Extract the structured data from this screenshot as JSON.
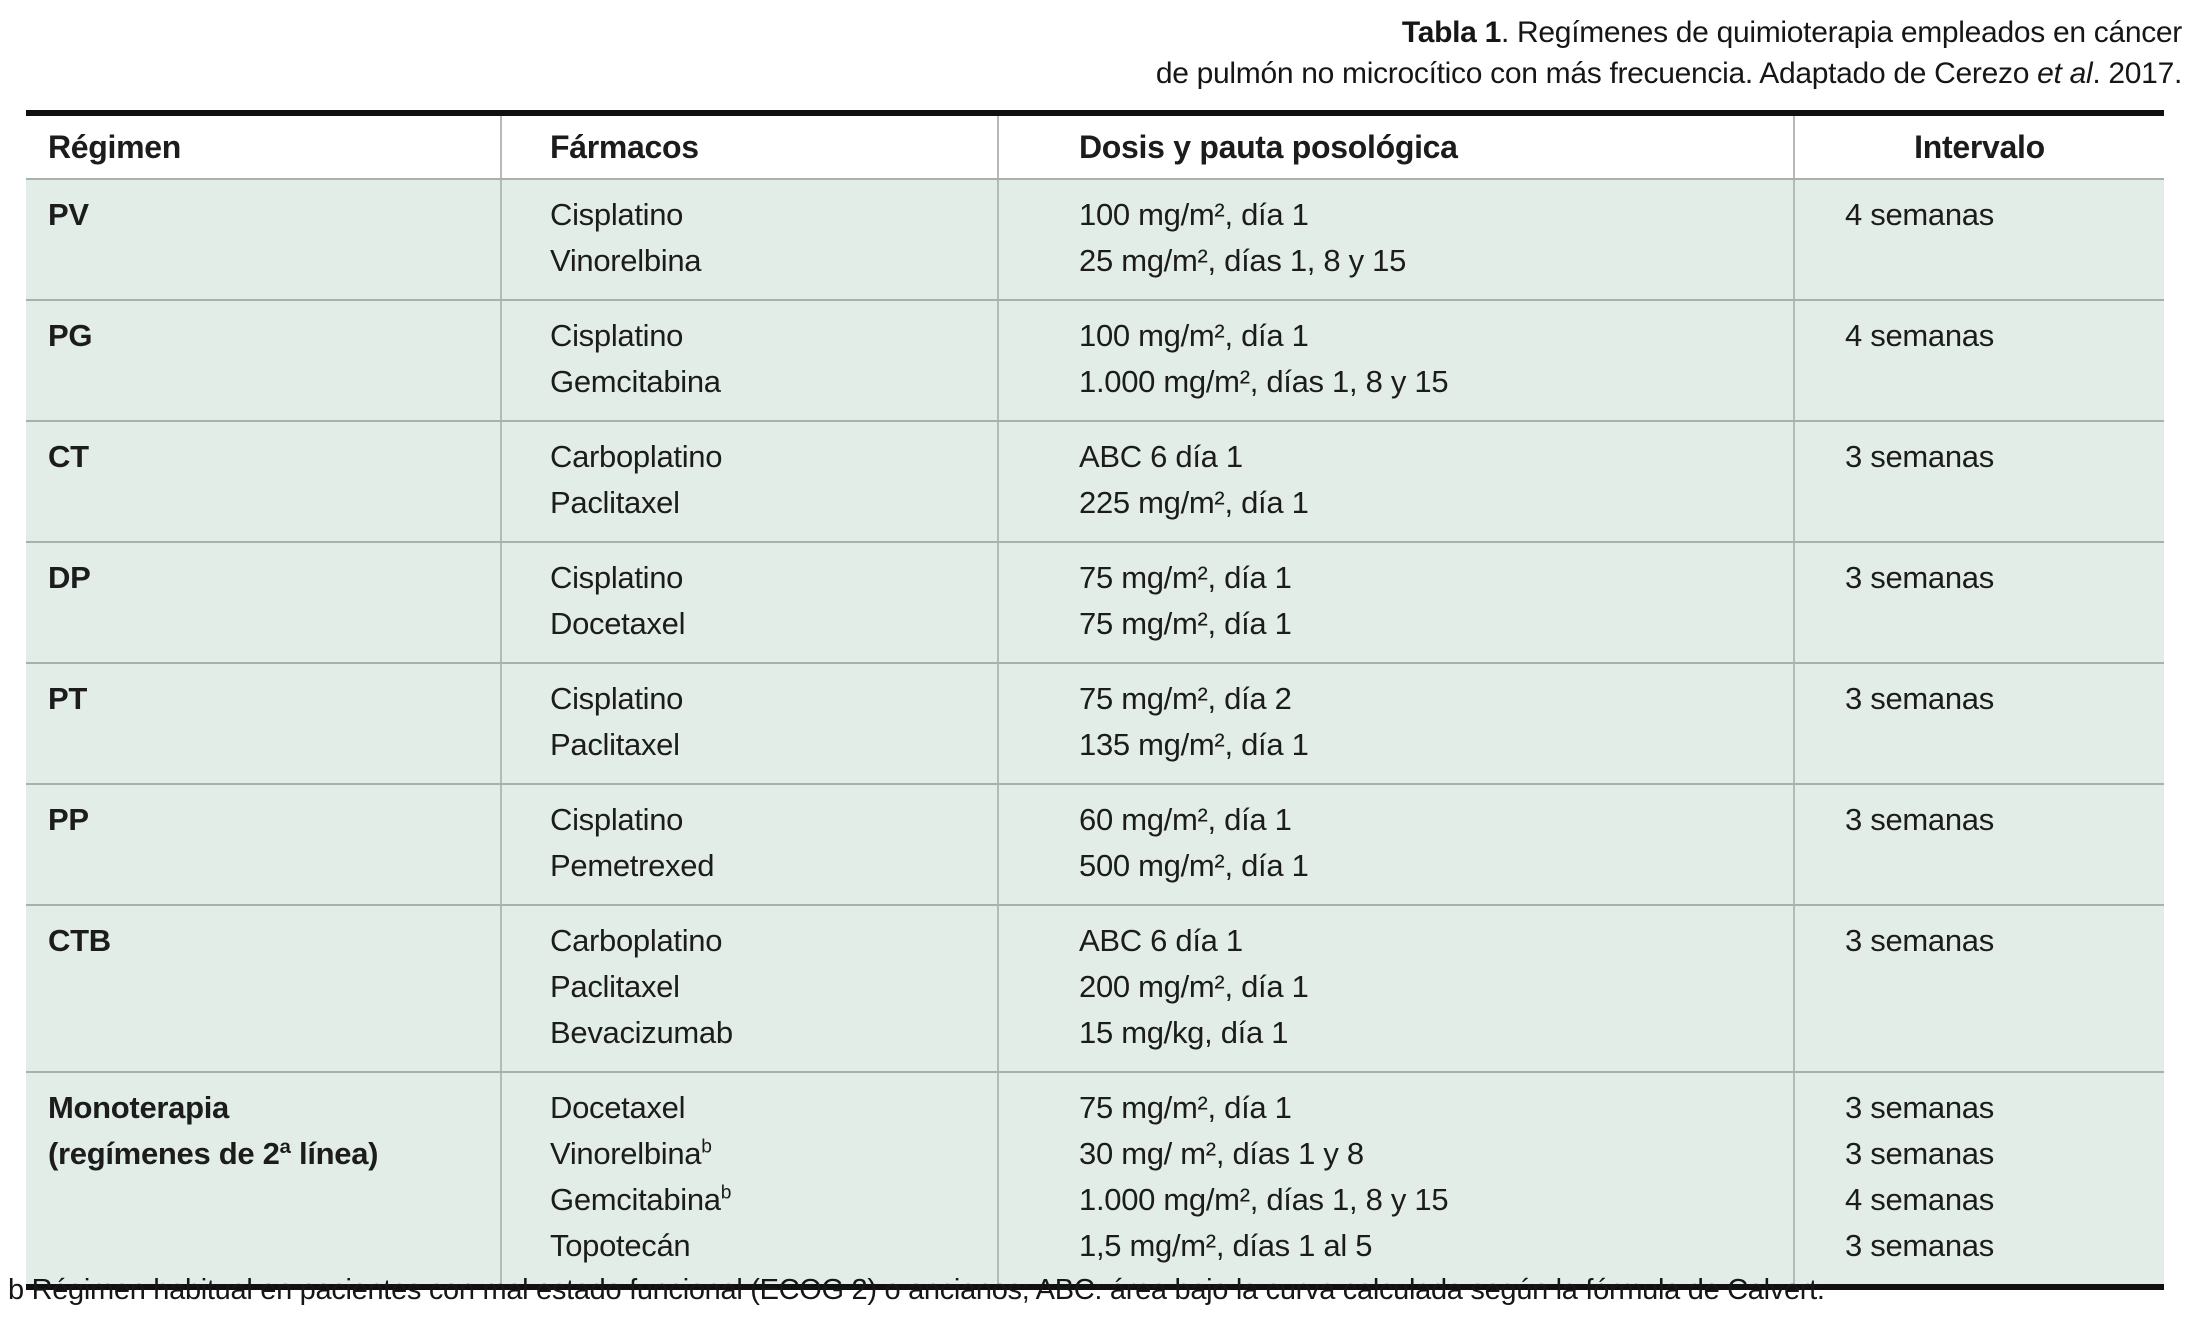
{
  "title": {
    "line1_bold": "Tabla 1",
    "line1_rest": ". Regímenes de quimioterapia empleados en cáncer",
    "line2_pre": "de pulmón no microcítico con más frecuencia. Adaptado de Cerezo ",
    "line2_italic": "et al",
    "line2_post": ". 2017."
  },
  "colors": {
    "row_background": "#e3ede8",
    "separator_line": "#a9b0ad",
    "heavy_border": "#101010"
  },
  "table": {
    "headers": [
      "Régimen",
      "Fármacos",
      "Dosis y pauta posológica",
      "Intervalo"
    ],
    "rows": [
      {
        "regimen": [
          "PV"
        ],
        "drugs": [
          {
            "name": "Cisplatino",
            "sup": ""
          },
          {
            "name": "Vinorelbina",
            "sup": ""
          }
        ],
        "doses": [
          "100 mg/m², día 1",
          "25 mg/m², días 1, 8 y 15"
        ],
        "intervals": [
          "4 semanas"
        ]
      },
      {
        "regimen": [
          "PG"
        ],
        "drugs": [
          {
            "name": "Cisplatino",
            "sup": ""
          },
          {
            "name": "Gemcitabina",
            "sup": ""
          }
        ],
        "doses": [
          "100 mg/m², día 1",
          "1.000 mg/m², días 1, 8 y 15"
        ],
        "intervals": [
          "4 semanas"
        ]
      },
      {
        "regimen": [
          "CT"
        ],
        "drugs": [
          {
            "name": "Carboplatino",
            "sup": ""
          },
          {
            "name": "Paclitaxel",
            "sup": ""
          }
        ],
        "doses": [
          "ABC 6 día 1",
          "225 mg/m², día 1"
        ],
        "intervals": [
          "3 semanas"
        ]
      },
      {
        "regimen": [
          "DP"
        ],
        "drugs": [
          {
            "name": "Cisplatino",
            "sup": ""
          },
          {
            "name": "Docetaxel",
            "sup": ""
          }
        ],
        "doses": [
          "75 mg/m², día 1",
          "75 mg/m², día 1"
        ],
        "intervals": [
          "3 semanas"
        ]
      },
      {
        "regimen": [
          "PT"
        ],
        "drugs": [
          {
            "name": "Cisplatino",
            "sup": ""
          },
          {
            "name": "Paclitaxel",
            "sup": ""
          }
        ],
        "doses": [
          "75 mg/m², día 2",
          "135 mg/m², día 1"
        ],
        "intervals": [
          "3 semanas"
        ]
      },
      {
        "regimen": [
          "PP"
        ],
        "drugs": [
          {
            "name": "Cisplatino",
            "sup": ""
          },
          {
            "name": "Pemetrexed",
            "sup": ""
          }
        ],
        "doses": [
          "60 mg/m², día 1",
          "500 mg/m², día 1"
        ],
        "intervals": [
          "3 semanas"
        ]
      },
      {
        "regimen": [
          "CTB"
        ],
        "drugs": [
          {
            "name": "Carboplatino",
            "sup": ""
          },
          {
            "name": "Paclitaxel",
            "sup": ""
          },
          {
            "name": "Bevacizumab",
            "sup": ""
          }
        ],
        "doses": [
          "ABC 6 día 1",
          "200 mg/m², día 1",
          "15 mg/kg, día 1"
        ],
        "intervals": [
          "3 semanas"
        ]
      },
      {
        "regimen": [
          "Monoterapia",
          "(regímenes de 2ª línea)"
        ],
        "drugs": [
          {
            "name": "Docetaxel",
            "sup": ""
          },
          {
            "name": "Vinorelbina",
            "sup": "b"
          },
          {
            "name": "Gemcitabina",
            "sup": "b"
          },
          {
            "name": "Topotecán",
            "sup": ""
          }
        ],
        "doses": [
          "75 mg/m², día 1",
          "30 mg/ m², días 1 y 8",
          "1.000 mg/m², días 1, 8 y 15",
          "1,5 mg/m², días 1 al 5"
        ],
        "intervals": [
          "3 semanas",
          "3 semanas",
          "4 semanas",
          "3 semanas"
        ]
      }
    ]
  },
  "footnote": "b Régimen habitual en pacientes con mal estado funcional (ECOG 2) o ancianos; ABC: área bajo la curva calculada según la fórmula de Calvert."
}
